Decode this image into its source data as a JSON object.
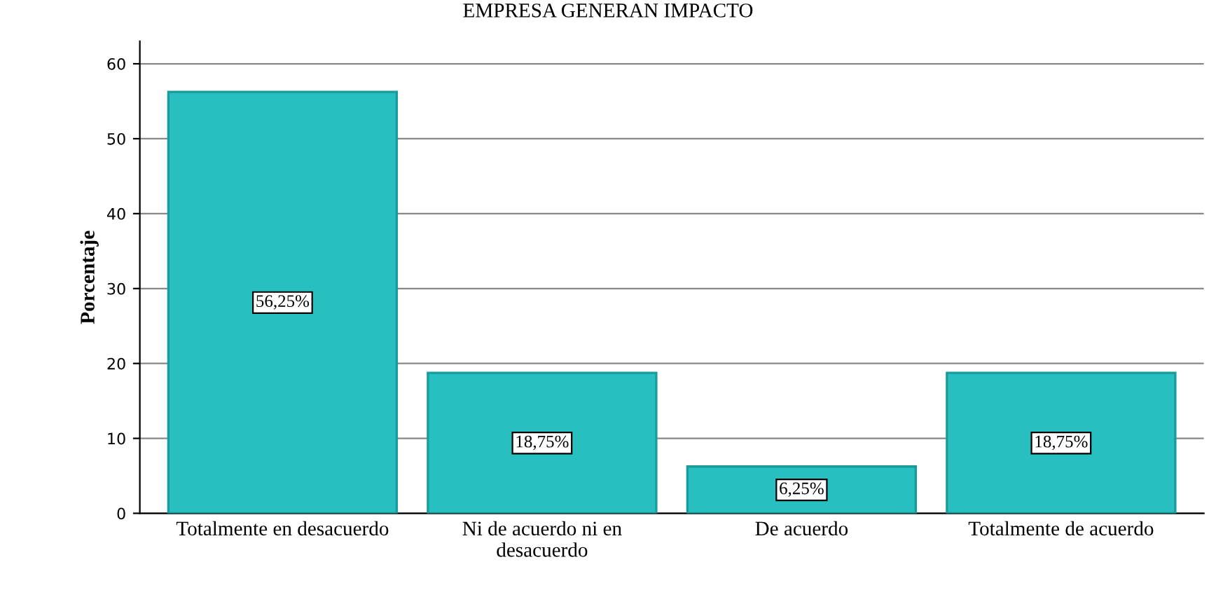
{
  "chart_data": {
    "type": "bar",
    "title": "EMPRESA GENERAN IMPACTO",
    "ylabel": "Porcentaje",
    "categories": [
      "Totalmente en desacuerdo",
      "Ni de acuerdo ni en\ndesacuerdo",
      "De acuerdo",
      "Totalmente de acuerdo"
    ],
    "values": [
      56.25,
      18.75,
      6.25,
      18.75
    ],
    "value_labels": [
      "56,25%",
      "18,75%",
      "6,25%",
      "18,75%"
    ],
    "color": "#27bfbf",
    "ylim": [
      0,
      63
    ],
    "yticks": [
      0,
      10,
      20,
      30,
      40,
      50,
      60
    ],
    "grid": "y"
  }
}
